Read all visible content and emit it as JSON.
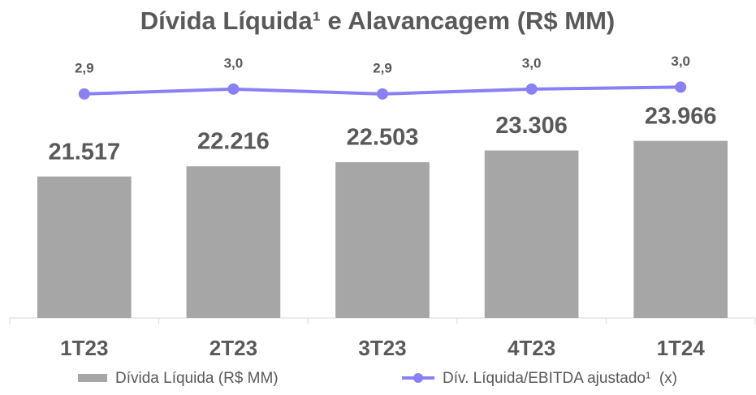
{
  "chart_data": {
    "type": "combo",
    "title": "Dívida Líquida¹ e Alavancagem (R$ MM)",
    "categories": [
      "1T23",
      "2T23",
      "3T23",
      "4T23",
      "1T24"
    ],
    "series": [
      {
        "name": "Dívida Líquida (R$ MM)",
        "type": "bar",
        "color": "#a6a6a6",
        "values": [
          21517,
          22216,
          22503,
          23306,
          23966
        ],
        "value_labels": [
          "21.517",
          "22.216",
          "22.503",
          "23.306",
          "23.966"
        ]
      },
      {
        "name": "Dív. Líquida/EBITDA ajustado¹  (x)",
        "type": "line",
        "axis": "y2",
        "color": "#8a80f5",
        "values": [
          2.9,
          3.0,
          2.9,
          3.0,
          3.04
        ],
        "value_labels": [
          "2,9",
          "3,0",
          "2,9",
          "3,0",
          "3,0"
        ]
      }
    ],
    "ylim": [
      11800,
      30300
    ],
    "y2lim": [
      -1.7,
      3.83
    ],
    "legend": "bottom"
  }
}
